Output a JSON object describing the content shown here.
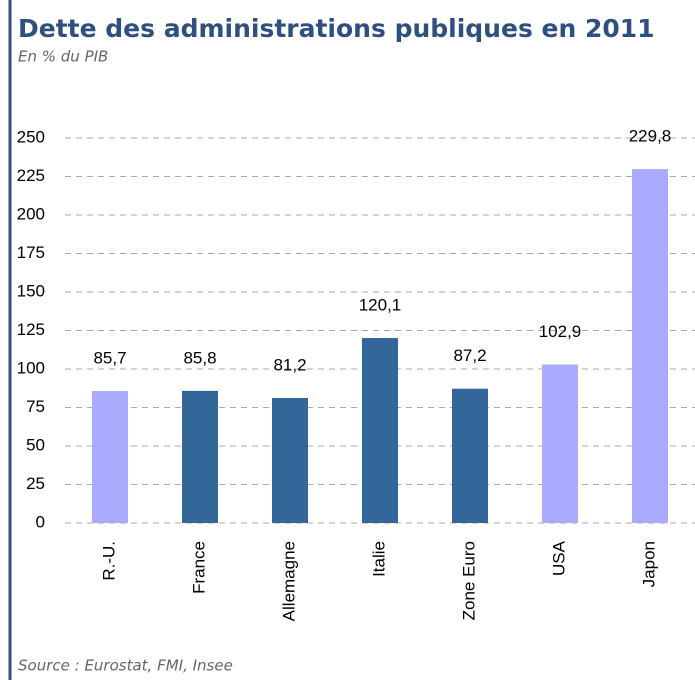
{
  "chart_data": {
    "type": "bar",
    "title": "Dette des administrations publiques en 2011",
    "subtitle": "En % du PIB",
    "source": "Source : Eurostat, FMI, Insee",
    "categories": [
      "R.-U.",
      "France",
      "Allemagne",
      "Italie",
      "Zone Euro",
      "USA",
      "Japon"
    ],
    "values": [
      85.7,
      85.8,
      81.2,
      120.1,
      87.2,
      102.9,
      229.8
    ],
    "value_labels": [
      "85,7",
      "85,8",
      "81,2",
      "120,1",
      "87,2",
      "102,9",
      "229,8"
    ],
    "colors": [
      "#aaaaff",
      "#336699",
      "#336699",
      "#336699",
      "#336699",
      "#aaaaff",
      "#aaaaff"
    ],
    "ylim": [
      0,
      250
    ],
    "yticks": [
      0,
      25,
      50,
      75,
      100,
      125,
      150,
      175,
      200,
      225,
      250
    ],
    "grid": true
  }
}
